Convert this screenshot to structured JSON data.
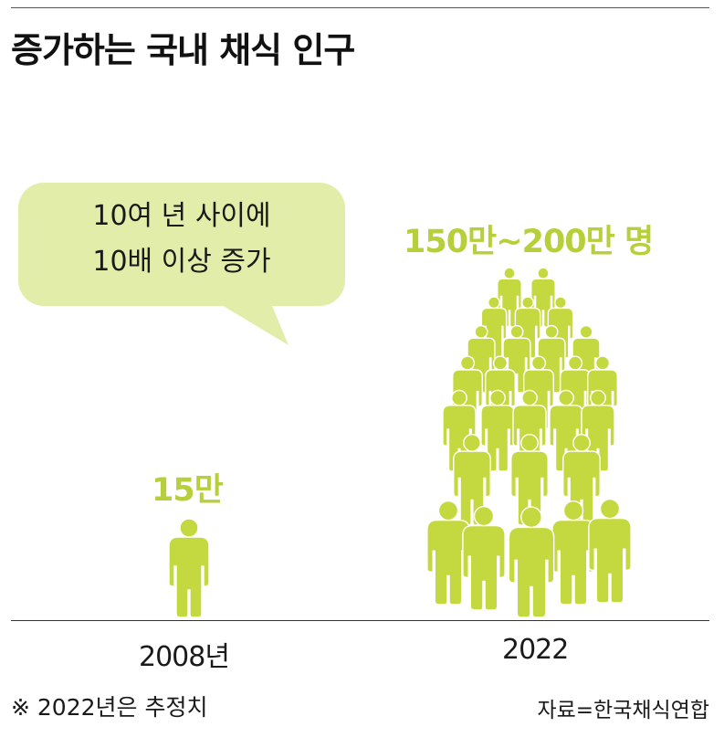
{
  "title": "증가하는 국내 채식 인구",
  "bubble": {
    "line1": "10여 년 사이에",
    "line2": "10배 이상 증가"
  },
  "note": "※ 2022년은 추정치",
  "source": "자료=한국채식연합",
  "colors": {
    "figure": "#c4d83f",
    "label": "#b7cf3a",
    "bubble": "#e3edaa"
  },
  "chart_data": {
    "type": "bar",
    "categories": [
      "2008년",
      "2022"
    ],
    "value_labels": [
      "15만",
      "150만~200만 명"
    ],
    "values": [
      15,
      175
    ],
    "value_ranges": [
      [
        15,
        15
      ],
      [
        150,
        200
      ]
    ],
    "unit": "만 명",
    "title": "증가하는 국내 채식 인구",
    "annotation": "10여 년 사이에 10배 이상 증가"
  }
}
